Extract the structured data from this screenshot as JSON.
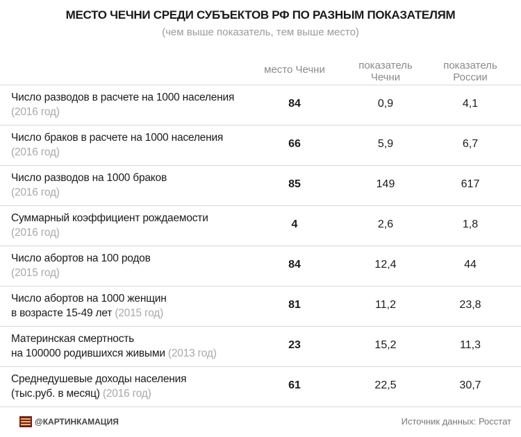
{
  "header": {
    "title": "МЕСТО ЧЕЧНИ СРЕДИ СУБЪЕКТОВ РФ ПО РАЗНЫМ ПОКАЗАТЕЛЯМ",
    "subtitle": "(чем выше показатель, тем выше место)"
  },
  "table": {
    "columns": [
      [
        "место Чечни"
      ],
      [
        "показатель",
        "Чечни"
      ],
      [
        "показатель",
        "России"
      ]
    ],
    "rows": [
      {
        "label": [
          "Число разводов в расчете на 1000 населения"
        ],
        "year": "(2016 год)",
        "rank": 84,
        "chechnya": "0,9",
        "russia": "4,1"
      },
      {
        "label": [
          "Число браков в расчете на 1000 населения"
        ],
        "year": "(2016 год)",
        "rank": 66,
        "chechnya": "5,9",
        "russia": "6,7"
      },
      {
        "label": [
          "Число разводов на 1000 браков"
        ],
        "year": "(2016 год)",
        "rank": 85,
        "chechnya": "149",
        "russia": "617"
      },
      {
        "label": [
          "Суммарный коэффициент рождаемости"
        ],
        "year": "(2016 год)",
        "rank": 4,
        "chechnya": "2,6",
        "russia": "1,8"
      },
      {
        "label": [
          "Число абортов на 100 родов"
        ],
        "year": "(2015 год)",
        "rank": 84,
        "chechnya": "12,4",
        "russia": "44"
      },
      {
        "label": [
          "Число абортов на 1000 женщин",
          "в возрасте 15-49 лет"
        ],
        "year": "(2015 год)",
        "rank": 81,
        "chechnya": "11,2",
        "russia": "23,8"
      },
      {
        "label": [
          "Материнская смертность",
          "на 100000 родившихся живыми"
        ],
        "year": "(2013 год)",
        "rank": 23,
        "chechnya": "15,2",
        "russia": "11,3"
      },
      {
        "label": [
          "Среднедушевые доходы населения",
          "(тыс.руб. в месяц)"
        ],
        "year": "(2016 год)",
        "rank": 61,
        "chechnya": "22,5",
        "russia": "30,7"
      }
    ]
  },
  "footer": {
    "brand": "@КАРТИНКАМАЦИЯ",
    "source": "Источник данных: Росстат"
  }
}
